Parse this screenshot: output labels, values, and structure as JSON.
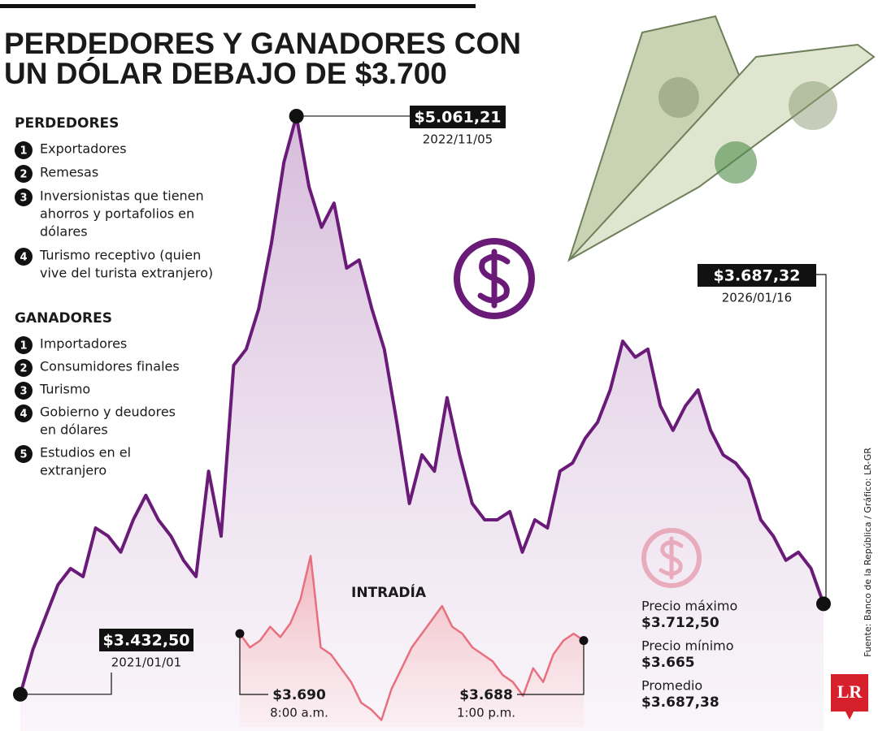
{
  "title": [
    "PERDEDORES Y GANADORES CON",
    "UN DÓLAR DEBAJO DE $3.700"
  ],
  "perdedores": {
    "heading": "PERDEDORES",
    "items": [
      {
        "n": "1",
        "lines": [
          "Exportadores"
        ]
      },
      {
        "n": "2",
        "lines": [
          "Remesas"
        ]
      },
      {
        "n": "3",
        "lines": [
          "Inversionistas que tienen",
          "ahorros y portafolios en",
          "dólares"
        ]
      },
      {
        "n": "4",
        "lines": [
          "Turismo receptivo (quien",
          "vive del turista extranjero)"
        ]
      }
    ]
  },
  "ganadores": {
    "heading": "GANADORES",
    "items": [
      {
        "n": "1",
        "lines": [
          "Importadores"
        ]
      },
      {
        "n": "2",
        "lines": [
          "Consumidores finales"
        ]
      },
      {
        "n": "3",
        "lines": [
          "Turismo"
        ]
      },
      {
        "n": "4",
        "lines": [
          "Gobierno y deudores",
          "en dólares"
        ]
      },
      {
        "n": "5",
        "lines": [
          "Estudios en el",
          "extranjero"
        ]
      }
    ]
  },
  "chart_data": [
    {
      "type": "line",
      "color": "#6a1b78",
      "values": [
        3432.5,
        3558,
        3650,
        3741,
        3787,
        3764,
        3901,
        3878,
        3833,
        3924,
        3993,
        3924,
        3878,
        3810,
        3764,
        4061,
        3878,
        4359,
        4405,
        4519,
        4702,
        4931,
        5061.21,
        4862,
        4748,
        4816,
        4633,
        4656,
        4519,
        4405,
        4199,
        3970,
        4107,
        4061,
        4268,
        4107,
        3970,
        3924,
        3924,
        3947,
        3833,
        3924,
        3901,
        4061,
        4084,
        4153,
        4199,
        4290,
        4427,
        4382,
        4405,
        4245,
        4176,
        4245,
        4290,
        4176,
        4107,
        4084,
        4039,
        3924,
        3878,
        3810,
        3833,
        3787,
        3687.32
      ],
      "ylim": [
        3400,
        5100
      ],
      "annotations": [
        {
          "label": "$3.432,50",
          "date": "2021/01/01"
        },
        {
          "label": "$5.061,21",
          "date": "2022/11/05"
        },
        {
          "label": "$3.687,32",
          "date": "2026/01/16"
        }
      ]
    },
    {
      "type": "line",
      "title": "INTRADÍA",
      "color": "#e8707e",
      "values": [
        3690,
        3686,
        3688,
        3692,
        3689,
        3693,
        3700,
        3712.5,
        3686,
        3684,
        3680,
        3676,
        3670,
        3668,
        3665,
        3674,
        3680,
        3686,
        3690,
        3694,
        3698,
        3692,
        3690,
        3686,
        3684,
        3682,
        3678,
        3676,
        3672,
        3680,
        3676,
        3684,
        3688,
        3690,
        3688
      ],
      "ylim": [
        3663,
        3714
      ],
      "annotations": [
        {
          "label": "$3.690",
          "date": "8:00 a.m."
        },
        {
          "label": "$3.688",
          "date": "1:00 p.m."
        }
      ]
    }
  ],
  "stats": [
    {
      "label": "Precio máximo",
      "value": "$3.712,50"
    },
    {
      "label": "Precio mínimo",
      "value": "$3.665"
    },
    {
      "label": "Promedio",
      "value": "$3.687,38"
    }
  ],
  "source": "Fuente: Banco de la República / Gráfico: LR-GR",
  "logo": "LR"
}
